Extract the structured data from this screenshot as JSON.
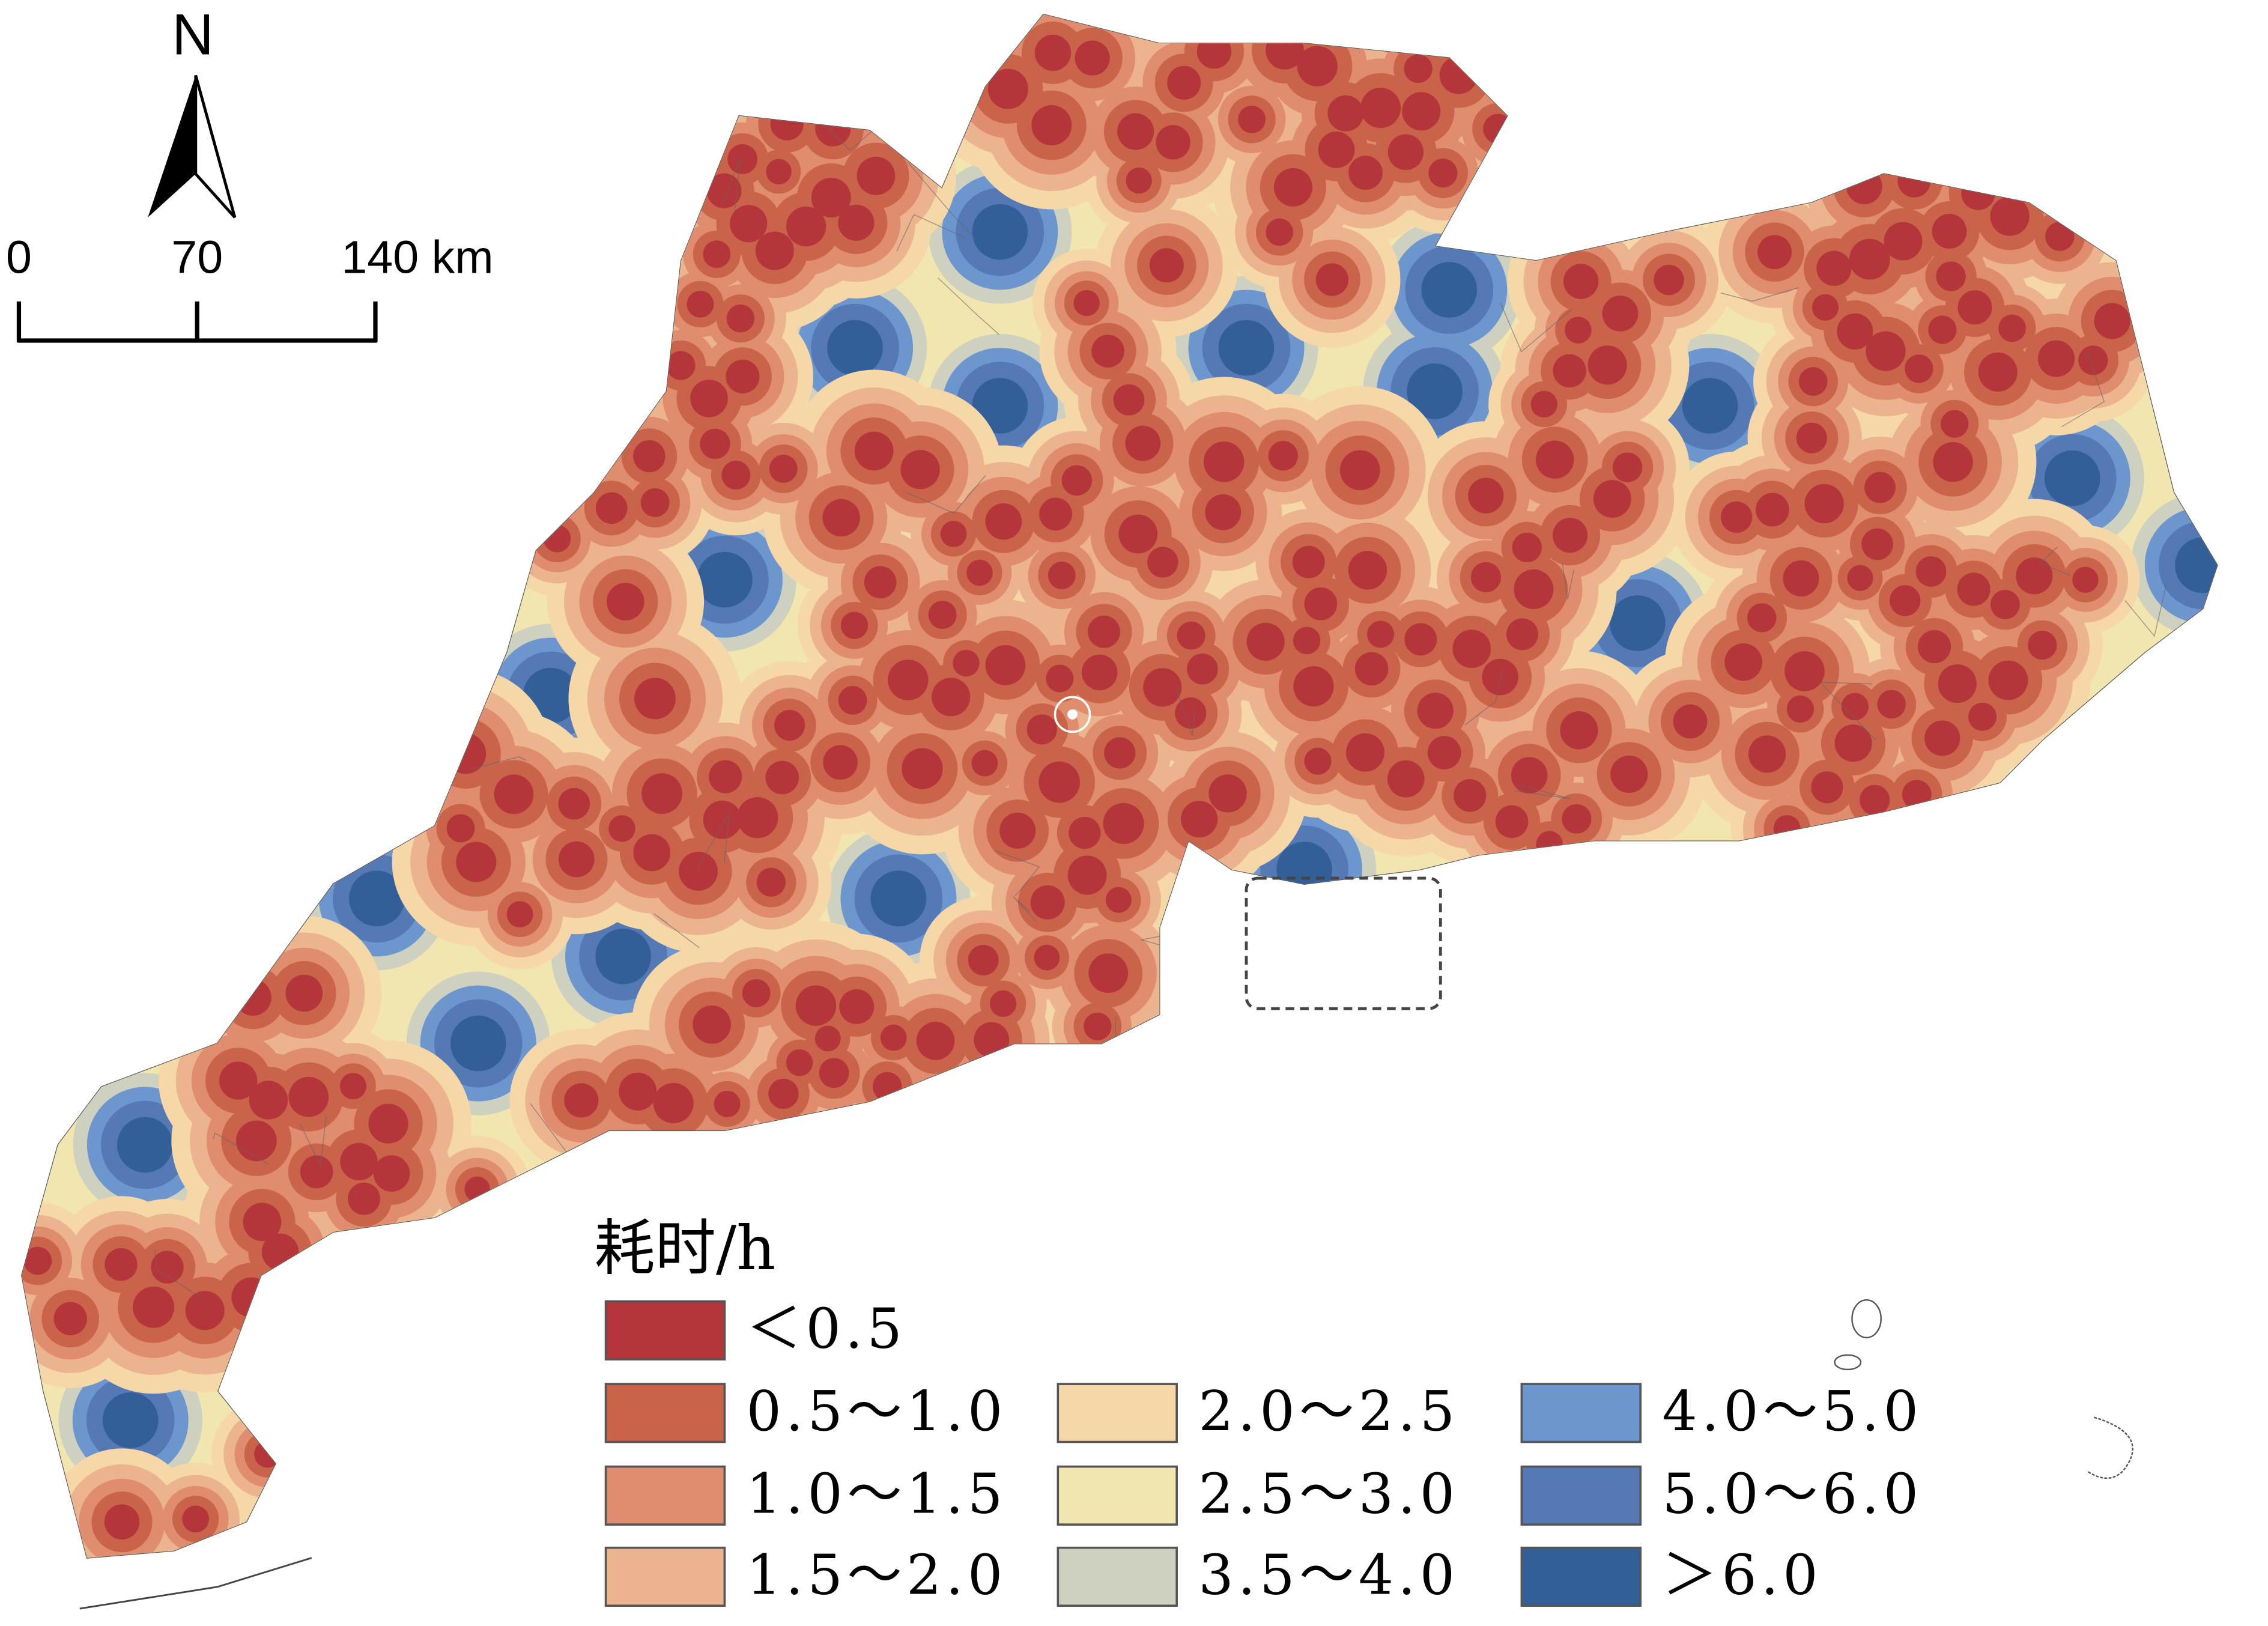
{
  "north_arrow": {
    "label": "N"
  },
  "scale_bar": {
    "labels": [
      "0",
      "70",
      "140 km"
    ]
  },
  "legend": {
    "title": "耗时/h",
    "items": [
      {
        "label": "＜0.5",
        "color": "#b5363a"
      },
      {
        "label": "0.5～1.0",
        "color": "#c9634a"
      },
      {
        "label": "1.0～1.5",
        "color": "#e08c6e"
      },
      {
        "label": "1.5～2.0",
        "color": "#ecb48e"
      },
      {
        "label": "2.0～2.5",
        "color": "#f5d7a8"
      },
      {
        "label": "2.5～3.0",
        "color": "#f2e6b0"
      },
      {
        "label": "3.5～4.0",
        "color": "#ced0c0"
      },
      {
        "label": "4.0～5.0",
        "color": "#6d96cf"
      },
      {
        "label": "5.0～6.0",
        "color": "#5479b5"
      },
      {
        "label": "＞6.0",
        "color": "#335f98"
      }
    ]
  }
}
